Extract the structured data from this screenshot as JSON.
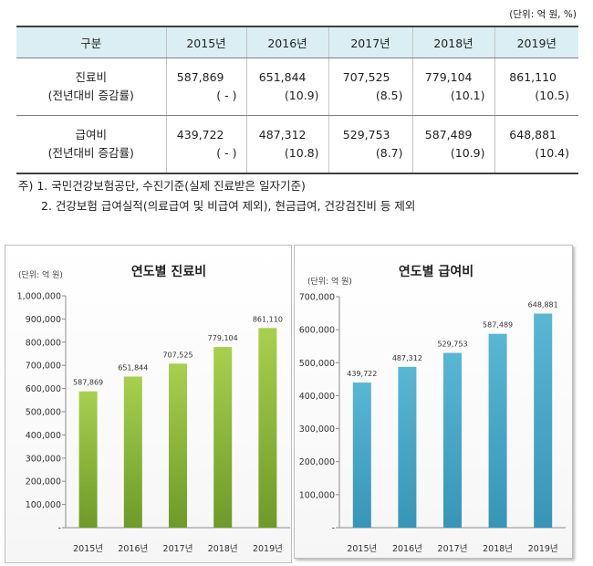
{
  "unit_note": "(단위: 억 원, %)",
  "colors": {
    "table_header_bg": "#daeef3"
  },
  "table": {
    "headers": [
      "구분",
      "2015년",
      "2016년",
      "2017년",
      "2018년",
      "2019년"
    ],
    "rows": [
      {
        "label": "진료비",
        "sublabel": "(전년대비 증감률)",
        "values": [
          "587,869",
          "651,844",
          "707,525",
          "779,104",
          "861,110"
        ],
        "rates": [
          "( - )",
          "(10.9)",
          "(8.5)",
          "(10.1)",
          "(10.5)"
        ]
      },
      {
        "label": "급여비",
        "sublabel": "(전년대비 증감률)",
        "values": [
          "439,722",
          "487,312",
          "529,753",
          "587,489",
          "648,881"
        ],
        "rates": [
          "( - )",
          "(10.8)",
          "(8.7)",
          "(10.9)",
          "(10.4)"
        ]
      }
    ]
  },
  "notes": {
    "line1": "주) 1. 국민건강보험공단, 수진기준(실제 진료받은 일자기준)",
    "line2": "2. 건강보험 급여실적(의료급여 및 비급여 제외), 현금급여, 건강검진비 등 제외"
  },
  "chart_data": [
    {
      "type": "bar",
      "title": "연도별 진료비",
      "unit_label": "(단위: 억 원)",
      "categories": [
        "2015년",
        "2016년",
        "2017년",
        "2018년",
        "2019년"
      ],
      "values": [
        587869,
        651844,
        707525,
        779104,
        861110
      ],
      "ylim": [
        0,
        1000000
      ],
      "yticks": [
        0,
        100000,
        200000,
        300000,
        400000,
        500000,
        600000,
        700000,
        800000,
        900000,
        1000000
      ],
      "ytick_labels": [
        "-",
        "100,000",
        "200,000",
        "300,000",
        "400,000",
        "500,000",
        "600,000",
        "700,000",
        "800,000",
        "900,000",
        "1,000,000"
      ],
      "grid": false,
      "legend": "none",
      "bar_color_top": "#a8d04e",
      "bar_color_bottom": "#6d9b28"
    },
    {
      "type": "bar",
      "title": "연도별 급여비",
      "unit_label": "(단위: 억 원)",
      "categories": [
        "2015년",
        "2016년",
        "2017년",
        "2018년",
        "2019년"
      ],
      "values": [
        439722,
        487312,
        529753,
        587489,
        648881
      ],
      "ylim": [
        0,
        700000
      ],
      "yticks": [
        0,
        100000,
        200000,
        300000,
        400000,
        500000,
        600000,
        700000
      ],
      "ytick_labels": [
        "-",
        "100,000",
        "200,000",
        "300,000",
        "400,000",
        "500,000",
        "600,000",
        "700,000"
      ],
      "grid": false,
      "legend": "none",
      "bar_color_top": "#58b7d3",
      "bar_color_bottom": "#3795b7"
    }
  ]
}
